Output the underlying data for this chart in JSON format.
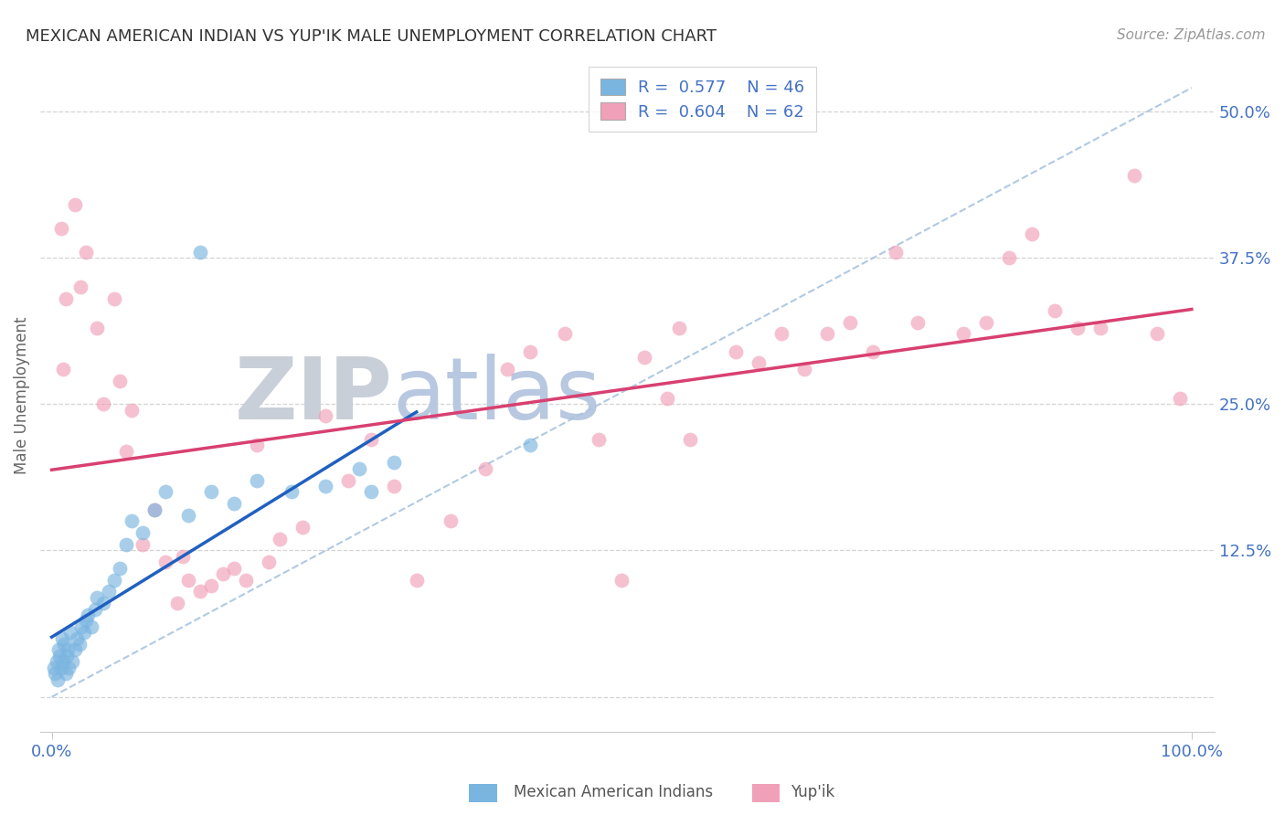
{
  "title": "MEXICAN AMERICAN INDIAN VS YUP'IK MALE UNEMPLOYMENT CORRELATION CHART",
  "source": "Source: ZipAtlas.com",
  "ylabel": "Male Unemployment",
  "xlim": [
    -0.01,
    1.02
  ],
  "ylim": [
    -0.03,
    0.545
  ],
  "yticks": [
    0.0,
    0.125,
    0.25,
    0.375,
    0.5
  ],
  "ytick_labels": [
    "",
    "12.5%",
    "25.0%",
    "37.5%",
    "50.0%"
  ],
  "xtick_vals": [
    0.0,
    1.0
  ],
  "xtick_labels": [
    "0.0%",
    "100.0%"
  ],
  "legend_R_blue": "0.577",
  "legend_N_blue": "46",
  "legend_R_pink": "0.604",
  "legend_N_pink": "62",
  "blue_x": [
    0.002,
    0.003,
    0.004,
    0.005,
    0.006,
    0.007,
    0.008,
    0.009,
    0.01,
    0.011,
    0.012,
    0.013,
    0.014,
    0.015,
    0.016,
    0.018,
    0.02,
    0.022,
    0.024,
    0.026,
    0.028,
    0.03,
    0.032,
    0.035,
    0.038,
    0.04,
    0.045,
    0.05,
    0.055,
    0.06,
    0.065,
    0.07,
    0.08,
    0.09,
    0.1,
    0.12,
    0.14,
    0.16,
    0.18,
    0.21,
    0.24,
    0.27,
    0.3,
    0.13,
    0.42,
    0.28
  ],
  "blue_y": [
    0.025,
    0.02,
    0.03,
    0.015,
    0.04,
    0.035,
    0.025,
    0.05,
    0.03,
    0.045,
    0.02,
    0.035,
    0.04,
    0.025,
    0.055,
    0.03,
    0.04,
    0.05,
    0.045,
    0.06,
    0.055,
    0.065,
    0.07,
    0.06,
    0.075,
    0.085,
    0.08,
    0.09,
    0.1,
    0.11,
    0.13,
    0.15,
    0.14,
    0.16,
    0.175,
    0.155,
    0.175,
    0.165,
    0.185,
    0.175,
    0.18,
    0.195,
    0.2,
    0.38,
    0.215,
    0.175
  ],
  "pink_x": [
    0.008,
    0.01,
    0.012,
    0.02,
    0.025,
    0.03,
    0.04,
    0.045,
    0.055,
    0.06,
    0.065,
    0.07,
    0.08,
    0.09,
    0.1,
    0.11,
    0.115,
    0.12,
    0.13,
    0.14,
    0.15,
    0.16,
    0.17,
    0.18,
    0.19,
    0.2,
    0.22,
    0.24,
    0.26,
    0.28,
    0.3,
    0.32,
    0.35,
    0.38,
    0.4,
    0.42,
    0.45,
    0.48,
    0.5,
    0.52,
    0.54,
    0.55,
    0.56,
    0.6,
    0.62,
    0.64,
    0.66,
    0.68,
    0.7,
    0.72,
    0.74,
    0.76,
    0.8,
    0.82,
    0.84,
    0.86,
    0.88,
    0.9,
    0.92,
    0.95,
    0.97,
    0.99
  ],
  "pink_y": [
    0.4,
    0.28,
    0.34,
    0.42,
    0.35,
    0.38,
    0.315,
    0.25,
    0.34,
    0.27,
    0.21,
    0.245,
    0.13,
    0.16,
    0.115,
    0.08,
    0.12,
    0.1,
    0.09,
    0.095,
    0.105,
    0.11,
    0.1,
    0.215,
    0.115,
    0.135,
    0.145,
    0.24,
    0.185,
    0.22,
    0.18,
    0.1,
    0.15,
    0.195,
    0.28,
    0.295,
    0.31,
    0.22,
    0.1,
    0.29,
    0.255,
    0.315,
    0.22,
    0.295,
    0.285,
    0.31,
    0.28,
    0.31,
    0.32,
    0.295,
    0.38,
    0.32,
    0.31,
    0.32,
    0.375,
    0.395,
    0.33,
    0.315,
    0.315,
    0.445,
    0.31,
    0.255
  ],
  "blue_color": "#7ab5e0",
  "pink_color": "#f0a0b8",
  "blue_line_color": "#2060c0",
  "pink_line_color": "#d84070",
  "dashed_color": "#a8c4e0",
  "grid_color": "#d0d0d0",
  "tick_color": "#4472C4",
  "title_color": "#333333",
  "source_color": "#999999",
  "watermark_zip_color": "#c8cfd8",
  "watermark_atlas_color": "#b8c8e0",
  "ylabel_color": "#666666",
  "bg_color": "#ffffff",
  "blue_line_x_end": 0.32,
  "dashed_slope": 0.52,
  "dashed_intercept": 0.0
}
